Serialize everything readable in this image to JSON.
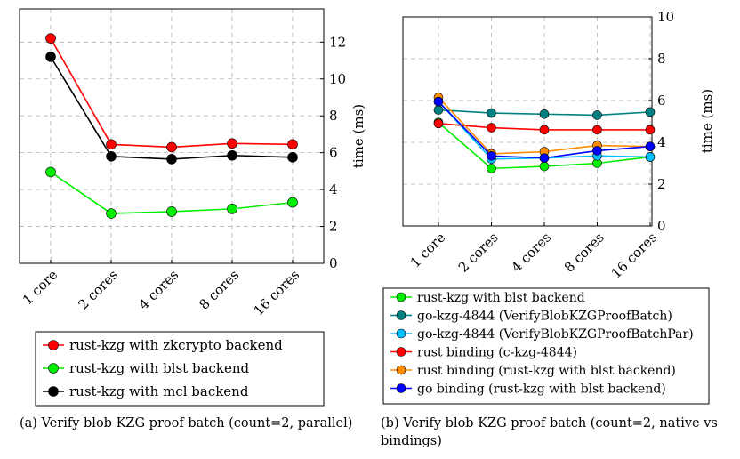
{
  "chart_data": [
    {
      "type": "line",
      "caption": "(a) Verify blob KZG proof batch (count=2, parallel)",
      "categories": [
        "1 core",
        "2 cores",
        "4 cores",
        "8 cores",
        "16 cores"
      ],
      "ylabel": "time (ms)",
      "ylim": [
        0,
        13.8
      ],
      "yticks": [
        0,
        2,
        4,
        6,
        8,
        10,
        12
      ],
      "grid": true,
      "legend_position": "below",
      "series": [
        {
          "name": "rust-kzg with zkcrypto backend",
          "color": "#ff0000",
          "values": [
            12.2,
            6.45,
            6.3,
            6.5,
            6.45
          ]
        },
        {
          "name": "rust-kzg with blst backend",
          "color": "#00ee00",
          "values": [
            4.95,
            2.7,
            2.8,
            2.95,
            3.3
          ]
        },
        {
          "name": "rust-kzg with mcl backend",
          "color": "#000000",
          "values": [
            11.2,
            5.8,
            5.65,
            5.85,
            5.75
          ]
        }
      ]
    },
    {
      "type": "line",
      "caption": "(b) Verify blob KZG proof batch (count=2, native vs bindings)",
      "categories": [
        "1 core",
        "2 cores",
        "4 cores",
        "8 cores",
        "16 cores"
      ],
      "ylabel": "time (ms)",
      "ylim": [
        0,
        10
      ],
      "yticks": [
        0,
        2,
        4,
        6,
        8,
        10
      ],
      "grid": true,
      "legend_position": "below",
      "series": [
        {
          "name": "rust-kzg with blst backend",
          "color": "#00ee00",
          "values": [
            4.95,
            2.75,
            2.85,
            3.0,
            3.3
          ]
        },
        {
          "name": "go-kzg-4844 (VerifyBlobKZGProofBatch)",
          "color": "#008080",
          "values": [
            5.55,
            5.4,
            5.35,
            5.3,
            5.45
          ]
        },
        {
          "name": "go-kzg-4844 (VerifyBlobKZGProofBatchPar)",
          "color": "#00bfff",
          "values": [
            5.95,
            3.2,
            3.25,
            3.35,
            3.3
          ]
        },
        {
          "name": "rust binding (c-kzg-4844)",
          "color": "#ff0000",
          "values": [
            4.9,
            4.7,
            4.6,
            4.6,
            4.6
          ]
        },
        {
          "name": "rust binding (rust-kzg with blst backend)",
          "color": "#ff8c00",
          "values": [
            6.15,
            3.45,
            3.55,
            3.85,
            3.8
          ]
        },
        {
          "name": "go binding (rust-kzg with blst backend)",
          "color": "#0000ff",
          "values": [
            5.95,
            3.35,
            3.25,
            3.6,
            3.8
          ]
        }
      ]
    }
  ]
}
